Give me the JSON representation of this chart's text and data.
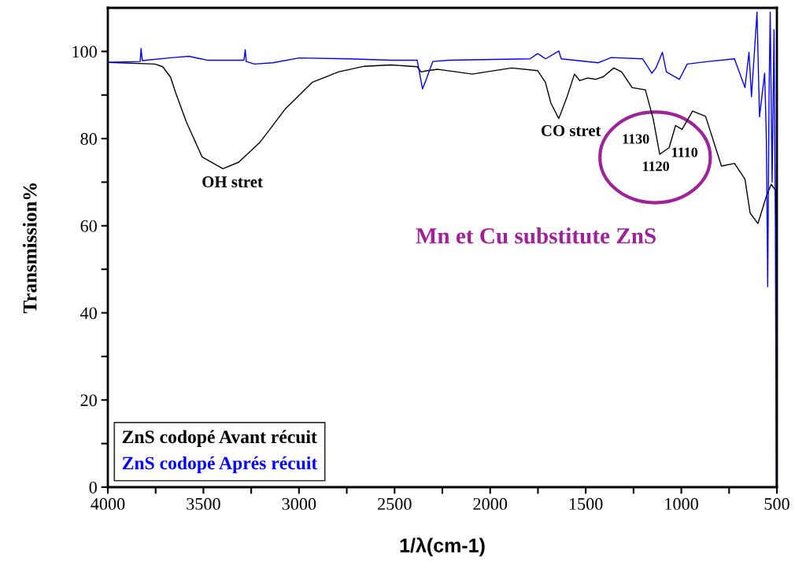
{
  "chart_data": {
    "type": "line",
    "xlabel": "1/λ(cm-1)",
    "ylabel": "Transmission%",
    "xlim": [
      4000,
      500
    ],
    "ylim": [
      0,
      110
    ],
    "xticks": [
      4000,
      {
        "value": 3750,
        "label": null
      },
      3500,
      {
        "value": 3250,
        "label": null
      },
      3000,
      {
        "value": 2750,
        "label": null
      },
      2500,
      {
        "value": 2250,
        "label": null
      },
      2000,
      {
        "value": 1750,
        "label": null
      },
      1500,
      {
        "value": 1250,
        "label": null
      },
      1000,
      {
        "value": 750,
        "label": null
      },
      500
    ],
    "yticks": [
      0,
      {
        "value": 10,
        "label": null
      },
      20,
      {
        "value": 30,
        "label": null
      },
      40,
      {
        "value": 50,
        "label": null
      },
      60,
      {
        "value": 70,
        "label": null
      },
      80,
      {
        "value": 90,
        "label": null
      },
      100
    ],
    "grid": false,
    "legend": "bottom left",
    "marker": "none",
    "line_style": "solid",
    "series": [
      {
        "name": "ZnS codopé Avant récuit",
        "color": "#000000",
        "x": [
          4000,
          3754,
          3713,
          3672,
          3645,
          3590,
          3507,
          3398,
          3315,
          3205,
          3070,
          2931,
          2794,
          2658,
          2519,
          2382,
          2361,
          2328,
          2272,
          2094,
          1888,
          1752,
          1711,
          1682,
          1641,
          1600,
          1559,
          1531,
          1490,
          1449,
          1408,
          1353,
          1312,
          1257,
          1188,
          1147,
          1113,
          1064,
          1030,
          996,
          941,
          873,
          790,
          722,
          667,
          640,
          599,
          557,
          530,
          505,
          500
        ],
        "values": [
          97.5,
          97.1,
          96.5,
          94.1,
          90.5,
          83.9,
          75.8,
          73.1,
          74.6,
          79.1,
          86.9,
          92.9,
          95.3,
          96.6,
          96.9,
          96.5,
          95.3,
          95.6,
          95.9,
          94.8,
          96.2,
          95.6,
          92.9,
          88.1,
          84.6,
          89.3,
          94.8,
          93.3,
          93.9,
          93.6,
          94.2,
          96.2,
          95.3,
          91.7,
          91.2,
          84.5,
          76.4,
          77.9,
          83.0,
          82.1,
          86.3,
          85.1,
          73.7,
          74.3,
          70.7,
          62.9,
          60.5,
          66.5,
          69.5,
          68,
          0
        ]
      },
      {
        "name": "ZnS codopé Aprés récuit",
        "color": "#0000ff",
        "x": [
          4000,
          3831,
          3826,
          3820,
          3658,
          3576,
          3481,
          3288,
          3281,
          3276,
          3233,
          3137,
          2999,
          2740,
          2519,
          2382,
          2354,
          2334,
          2300,
          2217,
          1792,
          1751,
          1710,
          1641,
          1628,
          1435,
          1367,
          1202,
          1154,
          1133,
          1099,
          1078,
          1010,
          969,
          859,
          722,
          667,
          646,
          633,
          604,
          591,
          564,
          555,
          548,
          541,
          535,
          525,
          515,
          508,
          503,
          500
        ],
        "values": [
          97.5,
          97.7,
          100.7,
          97.9,
          98.6,
          98.9,
          98.0,
          98.0,
          100.4,
          97.7,
          97.1,
          97.4,
          98.5,
          98.3,
          98.0,
          98.0,
          91.4,
          93.6,
          97.7,
          98.0,
          98.3,
          99.5,
          98.3,
          100.1,
          98.3,
          97.4,
          98.6,
          98.3,
          95.0,
          96.2,
          99.8,
          95.3,
          93.6,
          97.1,
          97.7,
          98.3,
          91.7,
          99.8,
          89.6,
          109,
          85,
          95,
          80,
          46,
          90,
          109,
          70,
          105,
          60,
          0,
          0
        ]
      }
    ],
    "annotations": [
      "OH stret",
      "CO stret",
      "1130",
      "1110",
      "1120",
      "Mn et Cu substitute ZnS"
    ]
  }
}
